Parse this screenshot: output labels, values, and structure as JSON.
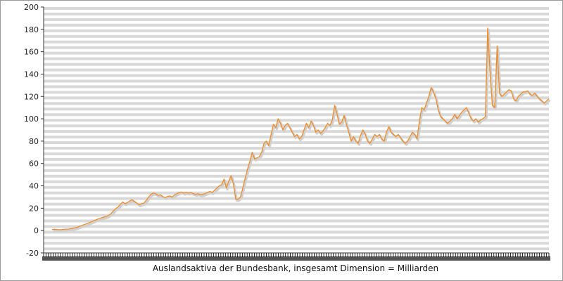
{
  "chart_data": {
    "type": "line",
    "title": "",
    "xlabel": "Auslandsaktiva der Bundesbank, insgesamt Dimension = Milliarden",
    "ylabel": "",
    "ylim": [
      -20,
      200
    ],
    "yticks": [
      -20,
      0,
      20,
      40,
      60,
      80,
      100,
      120,
      140,
      160,
      180,
      200
    ],
    "x_tick_labels_legible": false,
    "grid": true,
    "legend": "none",
    "series": [
      {
        "color": "#f08a24",
        "shadow_color": "#d0d0d0",
        "values": [
          1,
          1.2,
          1,
          0.8,
          0.9,
          1.1,
          1.3,
          1.4,
          1.6,
          2,
          2.6,
          3.2,
          4,
          4.8,
          5.6,
          6.4,
          7.2,
          8.1,
          9,
          9.9,
          10.7,
          11.4,
          12,
          12.6,
          13.5,
          15,
          17.5,
          19.5,
          21,
          23.5,
          25.5,
          24,
          25,
          26.5,
          27.5,
          26,
          24.5,
          23,
          24,
          24.5,
          27,
          30,
          32.5,
          33.5,
          33,
          31.5,
          32,
          30.5,
          29.5,
          30.5,
          31,
          30,
          32,
          33,
          34,
          34.5,
          33.5,
          34,
          33.5,
          34,
          33,
          32.5,
          33,
          32,
          32.5,
          33,
          34,
          35,
          34,
          36,
          38,
          40,
          41,
          46,
          38,
          44,
          49,
          42,
          28,
          28,
          30,
          38,
          47,
          55,
          62,
          70,
          64,
          65,
          66,
          70,
          78,
          80,
          76,
          86,
          95,
          92,
          100,
          96,
          90,
          94,
          96,
          92,
          88,
          84,
          86,
          82,
          84,
          90,
          96,
          92,
          98,
          94,
          88,
          90,
          87,
          89,
          92,
          96,
          94,
          99,
          112,
          104,
          95,
          97,
          103,
          95,
          88,
          80,
          84,
          80,
          78,
          85,
          90,
          86,
          80,
          78,
          82,
          86,
          84,
          86,
          82,
          80,
          88,
          93,
          88,
          86,
          84,
          86,
          83,
          80,
          78,
          80,
          84,
          88,
          86,
          82,
          98,
          110,
          108,
          114,
          120,
          128,
          124,
          118,
          108,
          102,
          100,
          98,
          96,
          98,
          100,
          104,
          100,
          103,
          106,
          108,
          110,
          105,
          100,
          98,
          100,
          97,
          99,
          100,
          102,
          181,
          140,
          112,
          110,
          165,
          123,
          120,
          122,
          124,
          126,
          125,
          118,
          116,
          120,
          122,
          124,
          124,
          125,
          122,
          121,
          123,
          120,
          118,
          116,
          114,
          116,
          118
        ]
      }
    ]
  }
}
